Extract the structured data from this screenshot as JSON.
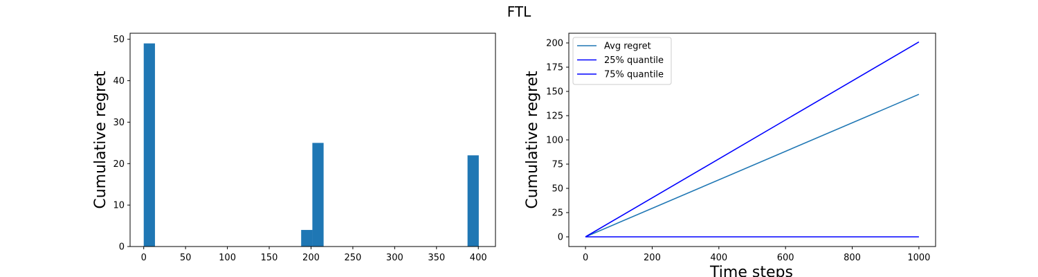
{
  "figure": {
    "suptitle": "FTL"
  },
  "chart_data": [
    {
      "type": "bar",
      "title": "",
      "xlabel": "",
      "ylabel": "Cumulative regret",
      "xlim": [
        -16.3,
        420.5
      ],
      "ylim": [
        0,
        51.45
      ],
      "xticks": [
        0,
        50,
        100,
        150,
        200,
        250,
        300,
        350,
        400
      ],
      "yticks": [
        0,
        10,
        20,
        30,
        40,
        50
      ],
      "bar_width": 13.44,
      "bars": [
        {
          "left": 0.0,
          "value": 49,
          "color": "#1f77b4"
        },
        {
          "left": 188.2,
          "value": 4,
          "color": "#1f77b4"
        },
        {
          "left": 201.6,
          "value": 25,
          "color": "#1f77b4"
        },
        {
          "left": 387.1,
          "value": 22,
          "color": "#1f77b4"
        }
      ],
      "grid": false
    },
    {
      "type": "line",
      "title": "",
      "xlabel": "Time steps",
      "ylabel": "Cumulative regret",
      "xlim": [
        -50,
        1050
      ],
      "ylim": [
        -10,
        210
      ],
      "xticks": [
        0,
        200,
        400,
        600,
        800,
        1000
      ],
      "yticks": [
        0,
        25,
        50,
        75,
        100,
        125,
        150,
        175,
        200
      ],
      "series": [
        {
          "name": "Avg regret",
          "color": "#1f77b4",
          "x": [
            0,
            1000
          ],
          "y": [
            0,
            147
          ]
        },
        {
          "name": "25% quantile",
          "color": "#0000ff",
          "x": [
            0,
            1000
          ],
          "y": [
            0,
            0
          ]
        },
        {
          "name": "75% quantile",
          "color": "#0000ff",
          "x": [
            0,
            1000
          ],
          "y": [
            0,
            201
          ]
        }
      ],
      "legend": "upper-left",
      "grid": false
    }
  ]
}
